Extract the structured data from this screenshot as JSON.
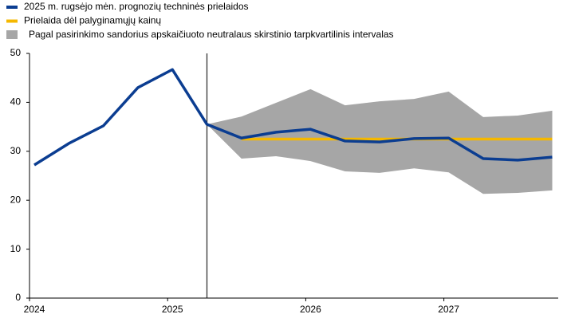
{
  "chart_data": {
    "type": "line",
    "categories": [
      "2024",
      null,
      null,
      null,
      "2025",
      null,
      null,
      null,
      "2026",
      null,
      null,
      null,
      "2027",
      null,
      null,
      null
    ],
    "series": [
      {
        "name": "2025 m. rugsėjo mėn. prognozių techninės prielaidos",
        "color": "#0b3d91",
        "values": [
          27.2,
          31.6,
          35.2,
          43.0,
          46.7,
          35.5,
          32.7,
          33.9,
          34.5,
          32.1,
          31.9,
          32.6,
          32.7,
          28.5,
          28.2,
          28.8
        ]
      },
      {
        "name": "Prielaida dėl palyginamųjų kainų",
        "color": "#f5b800",
        "values": [
          null,
          null,
          null,
          null,
          null,
          null,
          32.5,
          32.5,
          32.5,
          32.5,
          32.5,
          32.5,
          32.5,
          32.5,
          32.5,
          32.5
        ]
      },
      {
        "name": "Pagal pasirinkimo sandorius apskaičiuoto neutralaus skirstinio tarpkvartilinis intervalas",
        "color": "#a6a6a6",
        "upper": [
          null,
          null,
          null,
          null,
          null,
          35.5,
          37.1,
          39.9,
          42.7,
          39.4,
          40.2,
          40.7,
          42.2,
          37.0,
          37.3,
          38.3
        ],
        "lower": [
          null,
          null,
          null,
          null,
          null,
          35.5,
          28.5,
          29.0,
          28.0,
          25.9,
          25.6,
          26.5,
          25.7,
          21.3,
          21.5,
          22.0
        ]
      }
    ],
    "ylim": [
      0,
      50
    ],
    "yticks": [
      0,
      10,
      20,
      30,
      40,
      50
    ],
    "grid": false
  }
}
